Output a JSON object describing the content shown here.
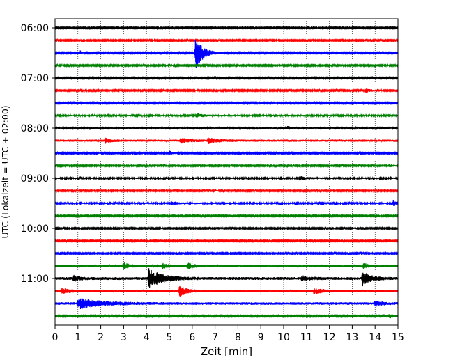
{
  "chart_data": {
    "type": "line",
    "title": "",
    "xlabel": "Zeit  [min]",
    "ylabel": "UTC (Lokalzeit = UTC + 02:00)",
    "xlim": [
      0,
      15
    ],
    "x_ticks": [
      "0",
      "1",
      "2",
      "3",
      "4",
      "5",
      "6",
      "7",
      "8",
      "9",
      "10",
      "11",
      "12",
      "13",
      "14",
      "15"
    ],
    "y_tick_labels": [
      "06:00",
      "07:00",
      "08:00",
      "09:00",
      "10:00",
      "11:00"
    ],
    "grid": "vertical dotted lines at each minute",
    "legend": "none",
    "color_cycle": [
      "#000000",
      "#ff0000",
      "#0000ff",
      "#008000"
    ],
    "series": [
      {
        "start": "06:00",
        "color": "black",
        "noise": 0.8,
        "events": []
      },
      {
        "start": "06:15",
        "color": "red",
        "noise": 0.8,
        "events": []
      },
      {
        "start": "06:30",
        "color": "blue",
        "noise": 0.8,
        "events": [
          {
            "t": 1.1,
            "amp": 3,
            "dur": 0.15
          },
          {
            "t": 6.15,
            "amp": 24,
            "dur": 0.5
          }
        ]
      },
      {
        "start": "06:45",
        "color": "green",
        "noise": 0.8,
        "events": []
      },
      {
        "start": "07:00",
        "color": "black",
        "noise": 0.8,
        "events": []
      },
      {
        "start": "07:15",
        "color": "red",
        "noise": 0.8,
        "events": [
          {
            "t": 13.6,
            "amp": 2.5,
            "dur": 0.4
          }
        ]
      },
      {
        "start": "07:30",
        "color": "blue",
        "noise": 0.8,
        "events": []
      },
      {
        "start": "07:45",
        "color": "green",
        "noise": 1.0,
        "events": [
          {
            "t": 6.2,
            "amp": 2.5,
            "dur": 0.6
          }
        ]
      },
      {
        "start": "08:00",
        "color": "black",
        "noise": 1.2,
        "events": [
          {
            "t": 10.1,
            "amp": 2.5,
            "dur": 0.4
          }
        ]
      },
      {
        "start": "08:15",
        "color": "red",
        "noise": 1.6,
        "events": [
          {
            "t": 2.2,
            "amp": 3.5,
            "dur": 0.3
          },
          {
            "t": 5.5,
            "amp": 3,
            "dur": 0.6
          },
          {
            "t": 6.7,
            "amp": 3.5,
            "dur": 0.6
          }
        ]
      },
      {
        "start": "08:30",
        "color": "blue",
        "noise": 0.8,
        "events": [
          {
            "t": 5.0,
            "amp": 3,
            "dur": 0.2
          }
        ]
      },
      {
        "start": "08:45",
        "color": "green",
        "noise": 0.8,
        "events": [
          {
            "t": 14.6,
            "amp": 2,
            "dur": 0.3
          }
        ]
      },
      {
        "start": "09:00",
        "color": "black",
        "noise": 1.0,
        "events": [
          {
            "t": 10.7,
            "amp": 3,
            "dur": 0.5
          }
        ]
      },
      {
        "start": "09:15",
        "color": "red",
        "noise": 0.8,
        "events": []
      },
      {
        "start": "09:30",
        "color": "blue",
        "noise": 1.0,
        "events": [
          {
            "t": 5.1,
            "amp": 3.5,
            "dur": 0.3
          },
          {
            "t": 14.8,
            "amp": 4,
            "dur": 0.3
          }
        ]
      },
      {
        "start": "09:45",
        "color": "green",
        "noise": 0.8,
        "events": []
      },
      {
        "start": "10:00",
        "color": "black",
        "noise": 0.8,
        "events": [
          {
            "t": 7.1,
            "amp": 2,
            "dur": 0.15
          },
          {
            "t": 13.0,
            "amp": 2,
            "dur": 0.15
          }
        ]
      },
      {
        "start": "10:15",
        "color": "red",
        "noise": 0.8,
        "events": []
      },
      {
        "start": "10:30",
        "color": "blue",
        "noise": 0.8,
        "events": []
      },
      {
        "start": "10:45",
        "color": "green",
        "noise": 1.6,
        "events": [
          {
            "t": 3.0,
            "amp": 4,
            "dur": 0.4
          },
          {
            "t": 4.7,
            "amp": 3,
            "dur": 0.4
          },
          {
            "t": 5.8,
            "amp": 4,
            "dur": 0.4
          },
          {
            "t": 13.5,
            "amp": 3.5,
            "dur": 0.3
          }
        ]
      },
      {
        "start": "11:00",
        "color": "black",
        "noise": 2.0,
        "events": [
          {
            "t": 0.8,
            "amp": 4,
            "dur": 0.4
          },
          {
            "t": 4.1,
            "amp": 13,
            "dur": 0.9
          },
          {
            "t": 10.8,
            "amp": 3,
            "dur": 0.5
          },
          {
            "t": 13.45,
            "amp": 10,
            "dur": 0.5
          }
        ]
      },
      {
        "start": "11:15",
        "color": "red",
        "noise": 1.6,
        "events": [
          {
            "t": 0.3,
            "amp": 3,
            "dur": 0.6
          },
          {
            "t": 5.45,
            "amp": 7,
            "dur": 0.5
          },
          {
            "t": 11.3,
            "amp": 4,
            "dur": 0.6
          }
        ]
      },
      {
        "start": "11:30",
        "color": "blue",
        "noise": 1.8,
        "events": [
          {
            "t": 1.0,
            "amp": 7,
            "dur": 1.5
          },
          {
            "t": 14.0,
            "amp": 3,
            "dur": 0.5
          }
        ]
      },
      {
        "start": "11:45",
        "color": "green",
        "noise": 0.9,
        "events": [
          {
            "t": 14.6,
            "amp": 3,
            "dur": 0.4
          }
        ]
      }
    ]
  }
}
